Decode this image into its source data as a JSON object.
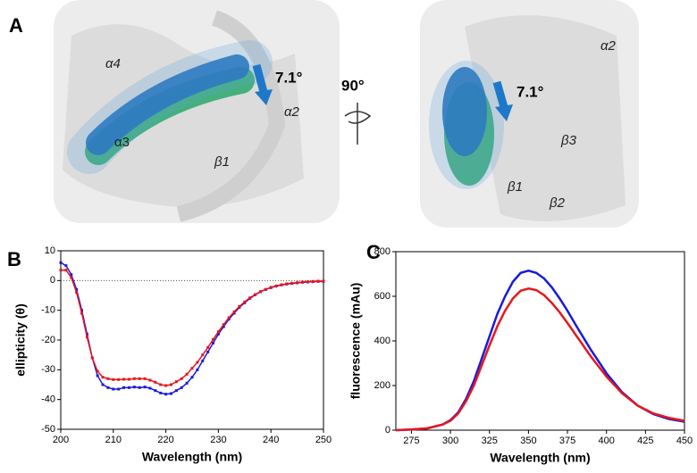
{
  "figure": {
    "panel_labels": [
      "A",
      "B",
      "C"
    ],
    "structure_left": {
      "labels": [
        "α4",
        "α3",
        "α2",
        "β1"
      ],
      "angle": "7.1°"
    },
    "rotation": "90°",
    "structure_right": {
      "labels": [
        "α2",
        "β3",
        "β1",
        "β2"
      ],
      "angle": "7.1°"
    }
  },
  "chart_data": [
    {
      "type": "line",
      "xlabel": "Wavelength (nm)",
      "ylabel": "ellipticity (θ)",
      "x": [
        200,
        201,
        202,
        203,
        204,
        205,
        206,
        207,
        208,
        209,
        210,
        211,
        212,
        213,
        214,
        215,
        216,
        217,
        218,
        219,
        220,
        221,
        222,
        223,
        224,
        225,
        226,
        227,
        228,
        229,
        230,
        231,
        232,
        233,
        234,
        235,
        236,
        237,
        238,
        239,
        240,
        241,
        242,
        243,
        244,
        245,
        246,
        247,
        248,
        249,
        250
      ],
      "series": [
        {
          "color": "#1a1adc",
          "values": [
            6,
            5,
            2,
            -3,
            -10,
            -18,
            -26,
            -32,
            -35,
            -36,
            -36.5,
            -36.5,
            -36,
            -36,
            -35.8,
            -36,
            -35.8,
            -36.2,
            -37,
            -37.8,
            -38.2,
            -38,
            -37,
            -36,
            -34.5,
            -32.5,
            -30,
            -27,
            -24,
            -21,
            -18,
            -15.5,
            -13,
            -11,
            -9,
            -7.5,
            -6,
            -4.8,
            -3.8,
            -3,
            -2.4,
            -1.9,
            -1.5,
            -1.2,
            -1,
            -0.8,
            -0.6,
            -0.5,
            -0.4,
            -0.3,
            -0.3
          ]
        },
        {
          "color": "#e8161c",
          "values": [
            3.5,
            3.5,
            1,
            -4,
            -11,
            -19,
            -26,
            -30.5,
            -32.5,
            -33,
            -33.3,
            -33.3,
            -33.2,
            -33.2,
            -33,
            -33,
            -33,
            -33.5,
            -34.2,
            -35,
            -35.3,
            -35,
            -34,
            -33,
            -31.5,
            -29.5,
            -27.5,
            -25,
            -22.5,
            -19.8,
            -17.2,
            -14.8,
            -12.5,
            -10.5,
            -8.7,
            -7.2,
            -5.8,
            -4.7,
            -3.7,
            -3,
            -2.3,
            -1.8,
            -1.4,
            -1.1,
            -0.9,
            -0.7,
            -0.5,
            -0.4,
            -0.3,
            -0.2,
            -0.2
          ]
        }
      ],
      "xlim": [
        200,
        250
      ],
      "xticks": [
        200,
        210,
        220,
        230,
        240,
        250
      ],
      "ylim": [
        -50,
        10
      ],
      "yticks": [
        -50,
        -40,
        -30,
        -20,
        -10,
        0,
        10
      ],
      "hline": 0,
      "markers": true
    },
    {
      "type": "line",
      "xlabel": "Wavelength (nm)",
      "ylabel": "fluorescence (mAu)",
      "x": [
        265,
        275,
        285,
        295,
        300,
        305,
        310,
        315,
        320,
        325,
        330,
        335,
        340,
        345,
        350,
        355,
        360,
        365,
        370,
        375,
        380,
        390,
        400,
        410,
        420,
        430,
        440,
        450
      ],
      "series": [
        {
          "color": "#1a1adc",
          "values": [
            0,
            3,
            8,
            25,
            45,
            80,
            140,
            220,
            320,
            420,
            520,
            600,
            665,
            705,
            715,
            705,
            680,
            640,
            590,
            535,
            475,
            360,
            255,
            170,
            110,
            72,
            50,
            38
          ]
        },
        {
          "color": "#e8161c",
          "values": [
            0,
            3,
            8,
            25,
            42,
            75,
            130,
            200,
            290,
            380,
            465,
            535,
            590,
            625,
            635,
            628,
            605,
            570,
            528,
            480,
            430,
            330,
            240,
            165,
            110,
            75,
            55,
            42
          ]
        }
      ],
      "xlim": [
        265,
        450
      ],
      "xticks": [
        275,
        300,
        325,
        350,
        375,
        400,
        425,
        450
      ],
      "ylim": [
        0,
        800
      ],
      "yticks": [
        0,
        200,
        400,
        600,
        800
      ],
      "markers": false
    }
  ]
}
